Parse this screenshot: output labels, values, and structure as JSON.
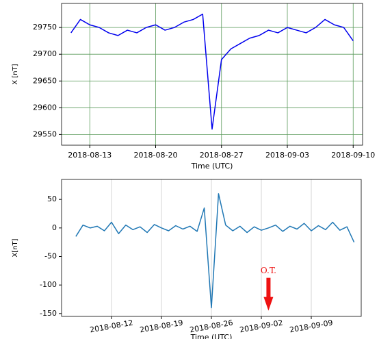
{
  "chart_data": [
    {
      "type": "line",
      "y_label": "X [nT]",
      "x_label": "Time (UTC)",
      "x": [
        "2018-08-11",
        "2018-08-12",
        "2018-08-13",
        "2018-08-14",
        "2018-08-15",
        "2018-08-16",
        "2018-08-17",
        "2018-08-18",
        "2018-08-19",
        "2018-08-20",
        "2018-08-21",
        "2018-08-22",
        "2018-08-23",
        "2018-08-24",
        "2018-08-25",
        "2018-08-26",
        "2018-08-27",
        "2018-08-28",
        "2018-08-29",
        "2018-08-30",
        "2018-08-31",
        "2018-09-01",
        "2018-09-02",
        "2018-09-03",
        "2018-09-04",
        "2018-09-05",
        "2018-09-06",
        "2018-09-07",
        "2018-09-08",
        "2018-09-09",
        "2018-09-10"
      ],
      "series": [
        {
          "color": "#0000ee",
          "values": [
            29740,
            29765,
            29755,
            29750,
            29740,
            29735,
            29745,
            29740,
            29750,
            29755,
            29745,
            29750,
            29760,
            29765,
            29775,
            29560,
            29690,
            29710,
            29720,
            29730,
            29735,
            29745,
            29740,
            29750,
            29745,
            29740,
            29750,
            29765,
            29755,
            29750,
            29725
          ]
        }
      ],
      "xlim": [
        "2018-08-10",
        "2018-09-11"
      ],
      "xticks": [
        "2018-08-13",
        "2018-08-20",
        "2018-08-27",
        "2018-09-03",
        "2018-09-10"
      ],
      "ylim": [
        29530,
        29795
      ],
      "yticks": [
        29550,
        29600,
        29650,
        29700,
        29750
      ],
      "grid": "both",
      "grid_color": "#5a9a5a"
    },
    {
      "type": "line",
      "y_label": "X[nT]",
      "x_label": "Time (UTC)",
      "x": [
        "2018-08-07",
        "2018-08-08",
        "2018-08-09",
        "2018-08-10",
        "2018-08-11",
        "2018-08-12",
        "2018-08-13",
        "2018-08-14",
        "2018-08-15",
        "2018-08-16",
        "2018-08-17",
        "2018-08-18",
        "2018-08-19",
        "2018-08-20",
        "2018-08-21",
        "2018-08-22",
        "2018-08-23",
        "2018-08-24",
        "2018-08-25",
        "2018-08-26",
        "2018-08-27",
        "2018-08-28",
        "2018-08-29",
        "2018-08-30",
        "2018-08-31",
        "2018-09-01",
        "2018-09-02",
        "2018-09-03",
        "2018-09-04",
        "2018-09-05",
        "2018-09-06",
        "2018-09-07",
        "2018-09-08",
        "2018-09-09",
        "2018-09-10",
        "2018-09-11",
        "2018-09-12",
        "2018-09-13",
        "2018-09-14",
        "2018-09-15"
      ],
      "series": [
        {
          "color": "#1f77b4",
          "values": [
            -15,
            5,
            0,
            3,
            -5,
            10,
            -10,
            5,
            -3,
            2,
            -8,
            6,
            0,
            -5,
            4,
            -2,
            3,
            -6,
            35,
            -140,
            60,
            5,
            -5,
            3,
            -8,
            2,
            -4,
            0,
            5,
            -6,
            3,
            -2,
            8,
            -5,
            4,
            -3,
            10,
            -4,
            2,
            -25
          ]
        }
      ],
      "xlim": [
        "2018-08-05",
        "2018-09-16"
      ],
      "xticks": [
        "2018-08-12",
        "2018-08-19",
        "2018-08-26",
        "2018-09-02",
        "2018-09-09"
      ],
      "ylim": [
        -155,
        85
      ],
      "yticks": [
        -150,
        -100,
        -50,
        0,
        50
      ],
      "grid": "x",
      "grid_color": "#cccccc",
      "annotation": {
        "text": "O.T.",
        "x": "2018-09-03",
        "y": -145,
        "color": "#ee1111"
      }
    }
  ]
}
